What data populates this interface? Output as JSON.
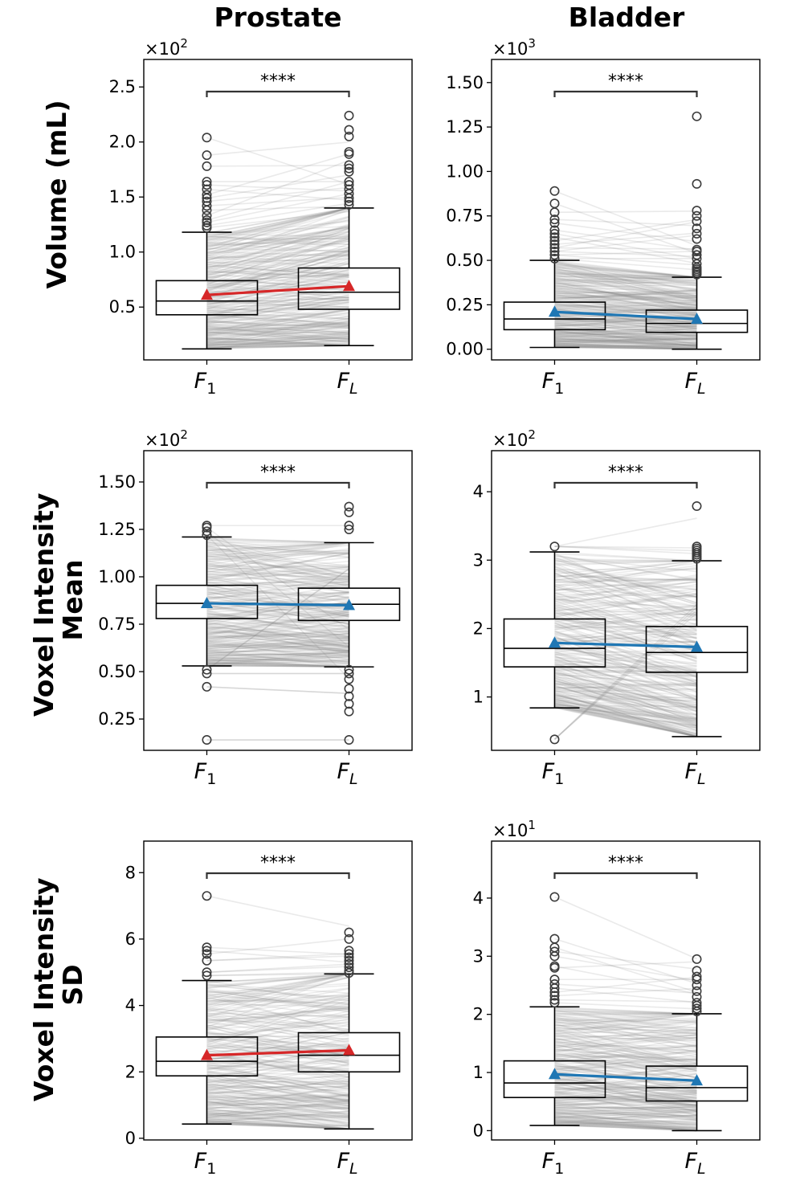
{
  "figure": {
    "col_titles": [
      "Prostate",
      "Bladder"
    ],
    "row_labels": [
      [
        "Volume (mL)"
      ],
      [
        "Voxel Intensity",
        "Mean"
      ],
      [
        "Voxel Intensity",
        "SD"
      ]
    ],
    "category_base": "F",
    "category_subs": [
      "1",
      "L"
    ]
  },
  "colors": {
    "red": "#d62728",
    "blue": "#1f77b4",
    "grey": "#808080",
    "box": "#000000"
  },
  "chart_data": [
    {
      "type": "box",
      "panel": "prostate-volume",
      "row": 0,
      "col": 0,
      "ylabel": "Volume (mL)",
      "multiplier_base": "×10",
      "multiplier_exp": "2",
      "ylim": [
        0.02,
        2.75
      ],
      "yticks": [
        0.5,
        1.0,
        1.5,
        2.0,
        2.5
      ],
      "ytick_labels": [
        "0.5",
        "1.0",
        "1.5",
        "2.0",
        "2.5"
      ],
      "significance": "****",
      "mean_color": "red",
      "boxes": [
        {
          "category": "F1",
          "whisker_low": 0.12,
          "q1": 0.43,
          "median": 0.555,
          "q3": 0.74,
          "whisker_high": 1.18,
          "mean": 0.61,
          "outliers": [
            1.22,
            1.24,
            1.27,
            1.29,
            1.33,
            1.38,
            1.42,
            1.46,
            1.49,
            1.52,
            1.57,
            1.61,
            1.64,
            1.78,
            1.88,
            2.04
          ]
        },
        {
          "category": "FL",
          "whisker_low": 0.15,
          "q1": 0.48,
          "median": 0.635,
          "q3": 0.855,
          "whisker_high": 1.4,
          "mean": 0.69,
          "outliers": [
            1.43,
            1.46,
            1.49,
            1.53,
            1.57,
            1.61,
            1.64,
            1.73,
            1.76,
            1.79,
            1.89,
            1.91,
            2.05,
            2.11,
            2.24
          ]
        }
      ]
    },
    {
      "type": "box",
      "panel": "bladder-volume",
      "row": 0,
      "col": 1,
      "ylabel": "Volume (mL)",
      "multiplier_base": "×10",
      "multiplier_exp": "3",
      "ylim": [
        -0.06,
        1.63
      ],
      "yticks": [
        0.0,
        0.25,
        0.5,
        0.75,
        1.0,
        1.25,
        1.5
      ],
      "ytick_labels": [
        "0.00",
        "0.25",
        "0.50",
        "0.75",
        "1.00",
        "1.25",
        "1.50"
      ],
      "significance": "****",
      "mean_color": "blue",
      "boxes": [
        {
          "category": "F1",
          "whisker_low": 0.01,
          "q1": 0.11,
          "median": 0.17,
          "q3": 0.265,
          "whisker_high": 0.5,
          "mean": 0.21,
          "outliers": [
            0.51,
            0.53,
            0.55,
            0.57,
            0.59,
            0.61,
            0.63,
            0.65,
            0.67,
            0.71,
            0.73,
            0.77,
            0.82,
            0.89
          ]
        },
        {
          "category": "FL",
          "whisker_low": 0.0,
          "q1": 0.095,
          "median": 0.145,
          "q3": 0.22,
          "whisker_high": 0.405,
          "mean": 0.17,
          "outliers": [
            0.42,
            0.43,
            0.44,
            0.45,
            0.46,
            0.48,
            0.51,
            0.53,
            0.55,
            0.56,
            0.62,
            0.65,
            0.68,
            0.72,
            0.75,
            0.78,
            0.93,
            1.31
          ]
        }
      ]
    },
    {
      "type": "box",
      "panel": "prostate-mean",
      "row": 1,
      "col": 0,
      "ylabel": "Voxel Intensity Mean",
      "multiplier_base": "×10",
      "multiplier_exp": "2",
      "ylim": [
        0.085,
        1.665
      ],
      "yticks": [
        0.25,
        0.5,
        0.75,
        1.0,
        1.25,
        1.5
      ],
      "ytick_labels": [
        "0.25",
        "0.50",
        "0.75",
        "1.00",
        "1.25",
        "1.50"
      ],
      "significance": "****",
      "mean_color": "blue",
      "boxes": [
        {
          "category": "F1",
          "whisker_low": 0.53,
          "q1": 0.78,
          "median": 0.86,
          "q3": 0.955,
          "whisker_high": 1.21,
          "mean": 0.86,
          "outliers": [
            0.14,
            0.42,
            0.49,
            0.51,
            1.22,
            1.24,
            1.26,
            1.27
          ]
        },
        {
          "category": "FL",
          "whisker_low": 0.525,
          "q1": 0.77,
          "median": 0.855,
          "q3": 0.94,
          "whisker_high": 1.18,
          "mean": 0.85,
          "outliers": [
            0.14,
            0.29,
            0.33,
            0.37,
            0.41,
            0.46,
            0.49,
            0.51,
            1.25,
            1.27,
            1.34,
            1.37
          ]
        }
      ]
    },
    {
      "type": "box",
      "panel": "bladder-mean",
      "row": 1,
      "col": 1,
      "ylabel": "Voxel Intensity Mean",
      "multiplier_base": "×10",
      "multiplier_exp": "2",
      "ylim": [
        0.22,
        4.6
      ],
      "yticks": [
        1,
        2,
        3,
        4
      ],
      "ytick_labels": [
        "1",
        "2",
        "3",
        "4"
      ],
      "significance": "****",
      "mean_color": "blue",
      "boxes": [
        {
          "category": "F1",
          "whisker_low": 0.84,
          "q1": 1.44,
          "median": 1.71,
          "q3": 2.14,
          "whisker_high": 3.12,
          "mean": 1.79,
          "outliers": [
            0.38,
            3.2
          ]
        },
        {
          "category": "FL",
          "whisker_low": 0.42,
          "q1": 1.36,
          "median": 1.65,
          "q3": 2.03,
          "whisker_high": 2.99,
          "mean": 1.73,
          "outliers": [
            3.02,
            3.05,
            3.08,
            3.11,
            3.14,
            3.17,
            3.2,
            3.79
          ]
        }
      ]
    },
    {
      "type": "box",
      "panel": "prostate-sd",
      "row": 2,
      "col": 0,
      "ylabel": "Voxel Intensity SD",
      "multiplier_base": "",
      "multiplier_exp": "",
      "ylim": [
        -0.05,
        8.95
      ],
      "yticks": [
        0,
        2,
        4,
        6,
        8
      ],
      "ytick_labels": [
        "0",
        "2",
        "4",
        "6",
        "8"
      ],
      "significance": "****",
      "mean_color": "red",
      "boxes": [
        {
          "category": "F1",
          "whisker_low": 0.43,
          "q1": 1.88,
          "median": 2.32,
          "q3": 3.05,
          "whisker_high": 4.75,
          "mean": 2.5,
          "outliers": [
            4.9,
            5.0,
            5.35,
            5.55,
            5.65,
            5.75,
            7.3
          ]
        },
        {
          "category": "FL",
          "whisker_low": 0.28,
          "q1": 2.0,
          "median": 2.5,
          "q3": 3.18,
          "whisker_high": 4.95,
          "mean": 2.65,
          "outliers": [
            4.98,
            5.05,
            5.15,
            5.25,
            5.35,
            5.45,
            5.55,
            5.65,
            6.0,
            6.2
          ]
        }
      ]
    },
    {
      "type": "box",
      "panel": "bladder-sd",
      "row": 2,
      "col": 1,
      "ylabel": "Voxel Intensity SD",
      "multiplier_base": "×10",
      "multiplier_exp": "1",
      "ylim": [
        -0.16,
        4.98
      ],
      "yticks": [
        0,
        1,
        2,
        3,
        4
      ],
      "ytick_labels": [
        "0",
        "1",
        "2",
        "3",
        "4"
      ],
      "significance": "****",
      "mean_color": "blue",
      "boxes": [
        {
          "category": "F1",
          "whisker_low": 0.09,
          "q1": 0.57,
          "median": 0.82,
          "q3": 1.2,
          "whisker_high": 2.13,
          "mean": 0.97,
          "outliers": [
            2.2,
            2.25,
            2.32,
            2.38,
            2.45,
            2.52,
            2.6,
            2.8,
            2.83,
            3.0,
            3.08,
            3.15,
            3.3,
            4.02
          ]
        },
        {
          "category": "FL",
          "whisker_low": 0.0,
          "q1": 0.51,
          "median": 0.74,
          "q3": 1.11,
          "whisker_high": 2.01,
          "mean": 0.86,
          "outliers": [
            2.05,
            2.1,
            2.15,
            2.2,
            2.3,
            2.4,
            2.5,
            2.6,
            2.65,
            2.75,
            2.95
          ]
        }
      ]
    }
  ]
}
